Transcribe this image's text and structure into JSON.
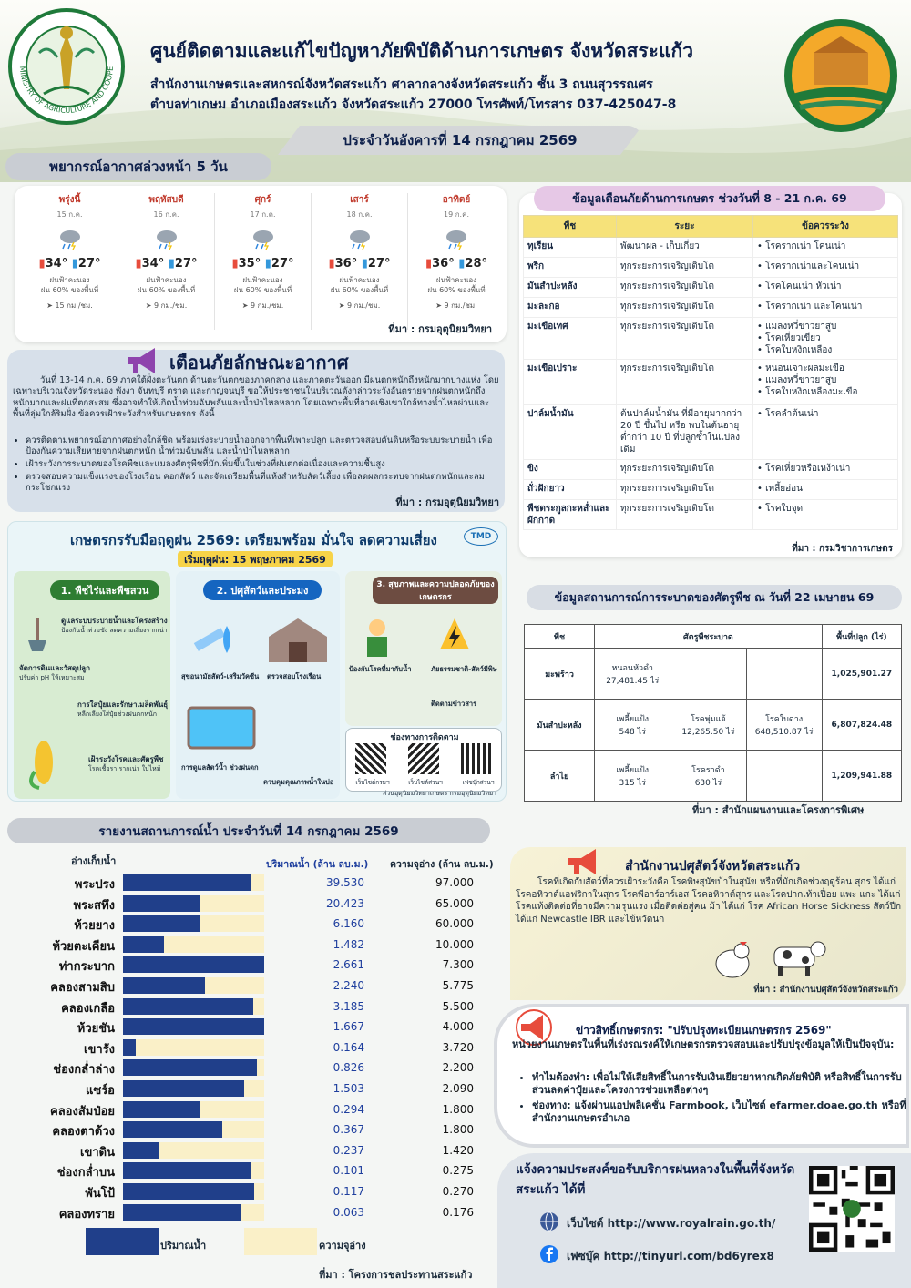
{
  "header": {
    "logo_text": "MINISTRY OF AGRICULTURE AND COOPERATIVES",
    "title": "ศูนย์ติดตามและแก้ไขปัญหาภัยพิบัติด้านการเกษตร จังหวัดสระแก้ว",
    "line1": "สำนักงานเกษตรและสหกรณ์จังหวัดสระแก้ว ศาลากลางจังหวัดสระแก้ว ชั้น 3 ถนนสุวรรณศร",
    "line2": "ตำบลท่าเกษม อำเภอเมืองสระแก้ว จังหวัดสระแก้ว 27000 โทรศัพท์/โทรสาร 037-425047-8",
    "date": "ประจำวันอังคารที่ 14 กรกฎาคม 2569"
  },
  "forecast": {
    "title": "พยากรณ์อากาศล่วงหน้า 5 วัน",
    "source": "ที่มา : กรมอุตุนิยมวิทยา",
    "days": [
      {
        "name": "พรุ่งนี้",
        "date": "15 ก.ค.",
        "hi": "34°",
        "lo": "27°",
        "desc": "ฝนฟ้าคะนอง",
        "rain": "ฝน 60% ของพื้นที่",
        "wind": "15 กม./ชม."
      },
      {
        "name": "พฤหัสบดี",
        "date": "16 ก.ค.",
        "hi": "34°",
        "lo": "27°",
        "desc": "ฝนฟ้าคะนอง",
        "rain": "ฝน 60% ของพื้นที่",
        "wind": "9 กม./ชม."
      },
      {
        "name": "ศุกร์",
        "date": "17 ก.ค.",
        "hi": "35°",
        "lo": "27°",
        "desc": "ฝนฟ้าคะนอง",
        "rain": "ฝน 60% ของพื้นที่",
        "wind": "9 กม./ชม."
      },
      {
        "name": "เสาร์",
        "date": "18 ก.ค.",
        "hi": "36°",
        "lo": "27°",
        "desc": "ฝนฟ้าคะนอง",
        "rain": "ฝน 60% ของพื้นที่",
        "wind": "9 กม./ชม."
      },
      {
        "name": "อาทิตย์",
        "date": "19 ก.ค.",
        "hi": "36°",
        "lo": "28°",
        "desc": "ฝนฟ้าคะนอง",
        "rain": "ฝน 60% ของพื้นที่",
        "wind": "9 กม./ชม."
      }
    ]
  },
  "warning": {
    "title": "เตือนภัยลักษณะอากาศ",
    "body": "วันที่ 13-14 ก.ค. 69 ภาคใต้ฝั่งตะวันตก ด้านตะวันตกของภาคกลาง และภาคตะวันออก มีฝนตกหนักถึงหนักมากบางแห่ง โดยเฉพาะบริเวณจังหวัดระนอง พังงา จันทบุรี ตราด และกาญจนบุรี ขอให้ประชาชนในบริเวณดังกล่าวระวังอันตรายจากฝนตกหนักถึงหนักมากและฝนที่ตกสะสม ซึ่งอาจทำให้เกิดน้ำท่วมฉับพลันและน้ำป่าไหลหลาก โดยเฉพาะพื้นที่ลาดเชิงเขาใกล้ทางน้ำไหลผ่านและพื้นที่ลุ่มใกล้ริมฝั่ง ข้อควรเฝ้าระวังสำหรับเกษตรกร ดังนี้",
    "bullets": [
      "ควรติดตามพยากรณ์อากาศอย่างใกล้ชิด พร้อมเร่งระบายน้ำออกจากพื้นที่เพาะปลูก และตรวจสอบคันดินหรือระบบระบายน้ำ เพื่อป้องกันความเสียหายจากฝนตกหนัก น้ำท่วมฉับพลัน และน้ำป่าไหลหลาก",
      "เฝ้าระวังการระบาดของโรคพืชและแมลงศัตรูพืชที่มักเพิ่มขึ้นในช่วงที่ฝนตกต่อเนื่องและความชื้นสูง",
      "ตรวจสอบความแข็งแรงของโรงเรือน คอกสัตว์ และจัดเตรียมพื้นที่แห้งสำหรับสัตว์เลี้ยง เพื่อลดผลกระทบจากฝนตกหนักและลมกระโชกแรง"
    ],
    "source": "ที่มา : กรมอุตุนิยมวิทยา"
  },
  "rainy": {
    "title": "เกษตรกรรับมือฤดูฝน 2569: เตรียมพร้อม มั่นใจ ลดความเสี่ยง",
    "logo": "TMD",
    "start": "เริ่มฤดูฝน: 15 พฤษภาคม 2569",
    "sec1": "1. พืชไร่และพืชสวน",
    "sec1a": "ดูแลระบบระบายน้ำและโครงสร้าง",
    "sec1a_d": "ป้องกันน้ำท่วมขัง ลดความเสี่ยงรากเน่า",
    "sec1b": "จัดการดินและวัสดุปลูก",
    "sec1b_d": "ปรับค่า pH ให้เหมาะสม",
    "sec1c": "การใส่ปุ๋ยและรักษาเมล็ดพันธุ์",
    "sec1c_d": "หลีกเลี่ยงใส่ปุ๋ยช่วงฝนตกหนัก",
    "sec1d": "เฝ้าระวังโรคและศัตรูพืช",
    "sec1d_d": "โรคเชื้อรา รากเน่า ใบไหม้",
    "sec2": "2. ปศุสัตว์และประมง",
    "sec2a": "สุขอนามัยสัตว์-เสริมวัคซีน",
    "sec2b": "ตรวจสอบโรงเรือน",
    "sec2c": "การดูแลสัตว์น้ำ ช่วงฝนตก",
    "sec2d": "ควบคุมคุณภาพน้ำในบ่อ",
    "sec3": "3. สุขภาพและความปลอดภัยของเกษตรกร",
    "sec3a": "ป้องกันโรคที่มากับน้ำ",
    "sec3b": "ภัยธรรมชาติ-สัตว์มีพิษ",
    "sec3c": "ติดตามข่าวสาร",
    "contact_title": "ช่องทางการติดตาม",
    "qr1": "เว็บไซต์กรมฯ",
    "qr2": "เว็บไซต์ส่วนฯ",
    "qr3": "เฟซบุ๊กส่วนฯ",
    "credit": "ส่วนอุตุนิยมวิทยาเกษตร กรมอุตุนิยมวิทยา"
  },
  "crop_warning": {
    "title": "ข้อมูลเตือนภัยด้านการเกษตร ช่วงวันที่ 8 - 21 ก.ค. 69",
    "headers": [
      "พืช",
      "ระยะ",
      "ข้อควรระวัง"
    ],
    "rows": [
      {
        "crop": "ทุเรียน",
        "stage": "พัฒนาผล - เก็บเกี่ยว",
        "warn": [
          "โรครากเน่า โคนเน่า"
        ]
      },
      {
        "crop": "พริก",
        "stage": "ทุกระยะการเจริญเติบโต",
        "warn": [
          "โรครากเน่าและโคนเน่า"
        ]
      },
      {
        "crop": "มันสำปะหลัง",
        "stage": "ทุกระยะการเจริญเติบโต",
        "warn": [
          "โรคโคนเน่า หัวเน่า"
        ]
      },
      {
        "crop": "มะละกอ",
        "stage": "ทุกระยะการเจริญเติบโต",
        "warn": [
          "โรครากเน่า และโคนเน่า"
        ]
      },
      {
        "crop": "มะเขือเทศ",
        "stage": "ทุกระยะการเจริญเติบโต",
        "warn": [
          "แมลงหวี่ขาวยาสูบ",
          "โรคเหี่ยวเขียว",
          "โรคใบหงิกเหลือง"
        ]
      },
      {
        "crop": "มะเขือเปราะ",
        "stage": "ทุกระยะการเจริญเติบโต",
        "warn": [
          "หนอนเจาะผลมะเขือ",
          "แมลงหวี่ขาวยาสูบ",
          "โรคใบหงิกเหลืองมะเขือ"
        ]
      },
      {
        "crop": "ปาล์มน้ำมัน",
        "stage": "ต้นปาล์มน้ำมัน ที่มีอายุมากกว่า 20 ปี ขึ้นไป หรือ พบในต้นอายุต่ำกว่า 10 ปี ที่ปลูกซ้ำในแปลงเดิม",
        "warn": [
          "โรคลำต้นเน่า"
        ]
      },
      {
        "crop": "ขิง",
        "stage": "ทุกระยะการเจริญเติบโต",
        "warn": [
          "โรคเหี่ยวหรือเหง้าเน่า"
        ]
      },
      {
        "crop": "ถั่วฝักยาว",
        "stage": "ทุกระยะการเจริญเติบโต",
        "warn": [
          "เพลี้ยอ่อน"
        ]
      },
      {
        "crop": "พืชตระกูลกะหล่ำและผักกาด",
        "stage": "ทุกระยะการเจริญเติบโต",
        "warn": [
          "โรคใบจุด"
        ]
      }
    ],
    "source": "ที่มา : กรมวิชาการเกษตร"
  },
  "pest": {
    "title": "ข้อมูลสถานการณ์การระบาดของศัตรูพืช ณ วันที่ 22 เมษายน 69",
    "headers": [
      "พืช",
      "ศัตรูพืชระบาด",
      "พื้นที่ปลูก (ไร่)"
    ],
    "rows": [
      {
        "crop": "มะพร้าว",
        "p1": "หนอนหัวดำ",
        "p1v": "27,481.45 ไร่",
        "p2": "",
        "p2v": "",
        "p3": "",
        "p3v": "",
        "area": "1,025,901.27"
      },
      {
        "crop": "มันสำปะหลัง",
        "p1": "เพลี้ยแป้ง",
        "p1v": "548 ไร่",
        "p2": "โรคพุ่มแจ้",
        "p2v": "12,265.50 ไร่",
        "p3": "โรคใบด่าง",
        "p3v": "648,510.87 ไร่",
        "area": "6,807,824.48"
      },
      {
        "crop": "ลำไย",
        "p1": "เพลี้ยแป้ง",
        "p1v": "315 ไร่",
        "p2": "โรคราดำ",
        "p2v": "630 ไร่",
        "p3": "",
        "p3v": "",
        "area": "1,209,941.88"
      }
    ],
    "source": "ที่มา : สำนักแผนงานและโครงการพิเศษ"
  },
  "water": {
    "title": "รายงานสถานการณ์น้ำ ประจำวันที่ 14 กรกฎาคม 2569",
    "col_name": "อ่างเก็บน้ำ",
    "col_vol": "ปริมาณน้ำ (ล้าน ลบ.ม.)",
    "col_cap": "ความจุอ่าง (ล้าน ลบ.ม.)",
    "legend_vol": "ปริมาณน้ำ",
    "legend_cap": "ความจุอ่าง",
    "source": "ที่มา : โครงการชลประทานสระแก้ว",
    "rows": [
      {
        "name": "พระปรง",
        "vol": "39.530",
        "cap": "97.000",
        "pct": 0.9
      },
      {
        "name": "พระสทึง",
        "vol": "20.423",
        "cap": "65.000",
        "pct": 0.55
      },
      {
        "name": "ห้วยยาง",
        "vol": "6.160",
        "cap": "60.000",
        "pct": 0.55
      },
      {
        "name": "ห้วยตะเคียน",
        "vol": "1.482",
        "cap": "10.000",
        "pct": 0.29
      },
      {
        "name": "ท่ากระบาก",
        "vol": "2.661",
        "cap": "7.300",
        "pct": 1.0
      },
      {
        "name": "คลองสามสิบ",
        "vol": "2.240",
        "cap": "5.775",
        "pct": 0.58
      },
      {
        "name": "คลองเกลือ",
        "vol": "3.185",
        "cap": "5.500",
        "pct": 0.92
      },
      {
        "name": "ห้วยชัน",
        "vol": "1.667",
        "cap": "4.000",
        "pct": 1.0
      },
      {
        "name": "เขารัง",
        "vol": "0.164",
        "cap": "3.720",
        "pct": 0.09
      },
      {
        "name": "ช่องกล่ำล่าง",
        "vol": "0.826",
        "cap": "2.200",
        "pct": 0.95
      },
      {
        "name": "แซร์อ",
        "vol": "1.503",
        "cap": "2.090",
        "pct": 0.86
      },
      {
        "name": "คลองสัมป่อย",
        "vol": "0.294",
        "cap": "1.800",
        "pct": 0.54
      },
      {
        "name": "คลองตาด้วง",
        "vol": "0.367",
        "cap": "1.800",
        "pct": 0.7
      },
      {
        "name": "เขาดิน",
        "vol": "0.237",
        "cap": "1.420",
        "pct": 0.26
      },
      {
        "name": "ช่องกล่ำบน",
        "vol": "0.101",
        "cap": "0.275",
        "pct": 0.9
      },
      {
        "name": "พันโป้",
        "vol": "0.117",
        "cap": "0.270",
        "pct": 0.93
      },
      {
        "name": "คลองทราย",
        "vol": "0.063",
        "cap": "0.176",
        "pct": 0.83
      }
    ]
  },
  "livestock": {
    "title": "สำนักงานปศุสัตว์จังหวัดสระแก้ว",
    "body": "โรคที่เกิดกับสัตว์ที่ควรเฝ้าระวังคือ โรคพิษสุนัขบ้าในสุนัข หรือที่มักเกิดช่วงฤดูร้อน สุกร ได้แก่ โรคอหิวาต์แอฟริกาในสุกร โรคพีอาร์อาร์เอส โรคอหิวาต์สุกร และโรคปากเท้าเปื่อย แพะ แกะ ได้แก่ โรคแท้งติดต่อที่อาจมีความรุนแรง เมื่อติดต่อสู่คน ม้า ได้แก่ โรค African Horse Sickness สัตว์ปีก ได้แก่ Newcastle IBR และไข้หวัดนก",
    "source": "ที่มา : สำนักงานปศุสัตว์จังหวัดสระแก้ว"
  },
  "news": {
    "title": "ข่าวสิทธิ์เกษตรกร: \"ปรับปรุงทะเบียนเกษตรกร 2569\"",
    "intro": "หน่วยงานเกษตรในพื้นที่เร่งรณรงค์ให้เกษตรกรตรวจสอบและปรับปรุงข้อมูลให้เป็นปัจจุบัน:",
    "b1": "ทำไมต้องทำ: เพื่อไม่ให้เสียสิทธิ์ในการรับเงินเยียวยาหากเกิดภัยพิบัติ หรือสิทธิ์ในการรับส่วนลดค่าปุ๋ยและโครงการช่วยเหลือต่างๆ",
    "b2": "ช่องทาง: แจ้งผ่านแอปพลิเคชั่น Farmbook, เว็บไซต์ efarmer.doae.go.th หรือที่สำนักงานเกษตรอำเภอ"
  },
  "royalrain": {
    "title": "แจ้งความประสงค์ขอรับบริการฝนหลวงในพื้นที่จังหวัดสระแก้ว ได้ที่",
    "web": "เว็บไซต์ http://www.royalrain.go.th/",
    "fb": "เฟซบุ๊ค http://tinyurl.com/bd6yrex8"
  },
  "colors": {
    "navy": "#203f8a",
    "cream": "#faf0c8",
    "yellow": "#f6e27a",
    "pink": "#e6c8e6"
  }
}
